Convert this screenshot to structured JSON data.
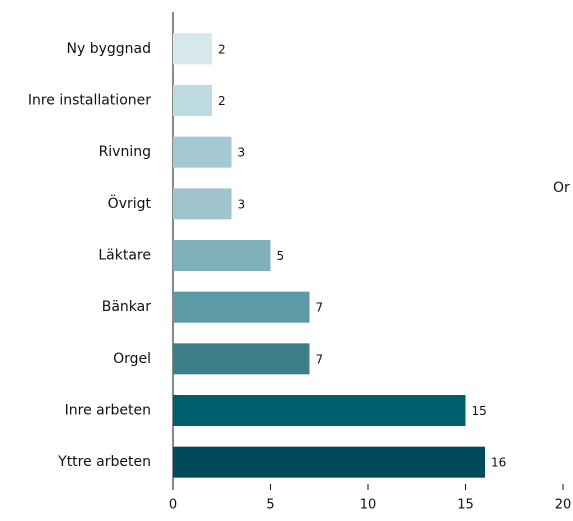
{
  "chart_data": {
    "type": "barh",
    "categories": [
      "Ny byggnad",
      "Inre installationer",
      "Rivning",
      "Övrigt",
      "Läktare",
      "Bänkar",
      "Orgel",
      "Inre arbeten",
      "Yttre arbeten"
    ],
    "values": [
      2,
      2,
      3,
      3,
      5,
      7,
      7,
      15,
      16
    ],
    "colors": [
      "#d6e8ec",
      "#bfdbe2",
      "#a3c8d1",
      "#9fc4ce",
      "#80b0bc",
      "#5b9aa6",
      "#3b7f8a",
      "#005f6d",
      "#004a5b"
    ],
    "xlim": [
      0,
      20
    ],
    "xticks": [
      0,
      5,
      10,
      15,
      20
    ],
    "annotation": "Or"
  }
}
